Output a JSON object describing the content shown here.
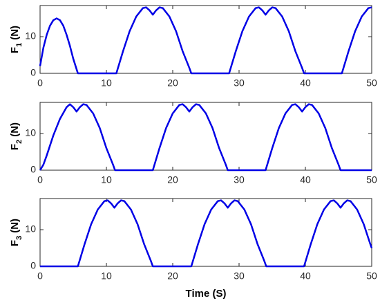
{
  "chart_data": [
    {
      "type": "line",
      "ylabel": {
        "main": "F",
        "sub": "1",
        "unit": "(N)"
      },
      "x": [
        0,
        0.5,
        1,
        1.5,
        2,
        2.5,
        3,
        3.5,
        4,
        4.5,
        5,
        5.7,
        11.5,
        12.5,
        13.5,
        14.5,
        15.5,
        16,
        16.5,
        17,
        17.5,
        18,
        18.5,
        19.5,
        20.5,
        21.5,
        22.5,
        22.8,
        28.5,
        29.5,
        30.5,
        31.5,
        32.5,
        33,
        33.5,
        34,
        34.5,
        35,
        35.5,
        36.5,
        37.5,
        38.5,
        39.5,
        39.8,
        45.5,
        46.5,
        47.5,
        48.5,
        49.5,
        50
      ],
      "series": [
        {
          "color": "#0000e6",
          "values": [
            2,
            7,
            10.5,
            13,
            14.5,
            15,
            14.5,
            13,
            10.5,
            7.5,
            4,
            0,
            0,
            6,
            11.5,
            15.5,
            17.8,
            18,
            17.2,
            16,
            17.2,
            18,
            17.8,
            15.5,
            11.5,
            6,
            1.5,
            0,
            0,
            6,
            11.5,
            15.5,
            17.8,
            18,
            17.2,
            16,
            17.2,
            18,
            17.8,
            15.5,
            11.5,
            6,
            1.5,
            0,
            0,
            6,
            11.5,
            15.5,
            17.8,
            18
          ]
        }
      ],
      "xlim": [
        0,
        50
      ],
      "ylim": [
        0,
        18.5
      ],
      "xticks": [
        0,
        10,
        20,
        30,
        40,
        50
      ],
      "yticks": [
        0,
        10
      ]
    },
    {
      "type": "line",
      "ylabel": {
        "main": "F",
        "sub": "2",
        "unit": "(N)"
      },
      "x": [
        0,
        0.5,
        1,
        2,
        3,
        4,
        4.5,
        5,
        5.5,
        6,
        6.5,
        7,
        8,
        9,
        10,
        11,
        11.3,
        17,
        18,
        19,
        20,
        21,
        21.5,
        22,
        22.5,
        23,
        23.5,
        24,
        25,
        26,
        27,
        28,
        28.3,
        34,
        35,
        36,
        37,
        38,
        38.5,
        39,
        39.5,
        40,
        40.5,
        41,
        42,
        43,
        44,
        45,
        45.3,
        50
      ],
      "series": [
        {
          "color": "#0000e6",
          "values": [
            0,
            1.5,
            4,
            9.5,
            14,
            17.2,
            18,
            17.2,
            16,
            17.2,
            18,
            17.8,
            15.5,
            11.5,
            6,
            1.5,
            0,
            0,
            6,
            11.5,
            15.5,
            17.8,
            18,
            17.2,
            16,
            17.2,
            18,
            17.8,
            15.5,
            11.5,
            6,
            1.5,
            0,
            0,
            6,
            11.5,
            15.5,
            17.8,
            18,
            17.2,
            16,
            17.2,
            18,
            17.8,
            15.5,
            11.5,
            6,
            1.5,
            0,
            0
          ]
        }
      ],
      "xlim": [
        0,
        50
      ],
      "ylim": [
        0,
        18.5
      ],
      "xticks": [
        0,
        10,
        20,
        30,
        40,
        50
      ],
      "yticks": [
        0,
        10
      ]
    },
    {
      "type": "line",
      "ylabel": {
        "main": "F",
        "sub": "3",
        "unit": "(N)"
      },
      "xlabel": "Time (S)",
      "x": [
        0,
        5.7,
        6.7,
        7.7,
        8.7,
        9.7,
        10.2,
        10.7,
        11.2,
        11.7,
        12.2,
        12.7,
        13.7,
        14.7,
        15.7,
        16.7,
        17,
        22.8,
        23.8,
        24.8,
        25.8,
        26.8,
        27.3,
        27.8,
        28.3,
        28.8,
        29.3,
        29.8,
        30.8,
        31.8,
        32.8,
        33.8,
        34.1,
        39.8,
        40.8,
        41.8,
        42.8,
        43.8,
        44.3,
        44.8,
        45.3,
        45.8,
        46.3,
        46.8,
        47.8,
        48.8,
        49.8,
        50
      ],
      "series": [
        {
          "color": "#0000e6",
          "values": [
            0,
            0,
            6,
            11.5,
            15.5,
            17.8,
            18,
            17.2,
            16,
            17.2,
            18,
            17.8,
            15.5,
            11.5,
            6,
            1.5,
            0,
            0,
            6,
            11.5,
            15.5,
            17.8,
            18,
            17.2,
            16,
            17.2,
            18,
            17.8,
            15.5,
            11.5,
            6,
            1.5,
            0,
            0,
            6,
            11.5,
            15.5,
            17.8,
            18,
            17.2,
            16,
            17.2,
            18,
            17.8,
            15.5,
            11.5,
            6,
            5
          ]
        }
      ],
      "xlim": [
        0,
        50
      ],
      "ylim": [
        0,
        18.5
      ],
      "xticks": [
        0,
        10,
        20,
        30,
        40,
        50
      ],
      "yticks": [
        0,
        10
      ]
    }
  ]
}
